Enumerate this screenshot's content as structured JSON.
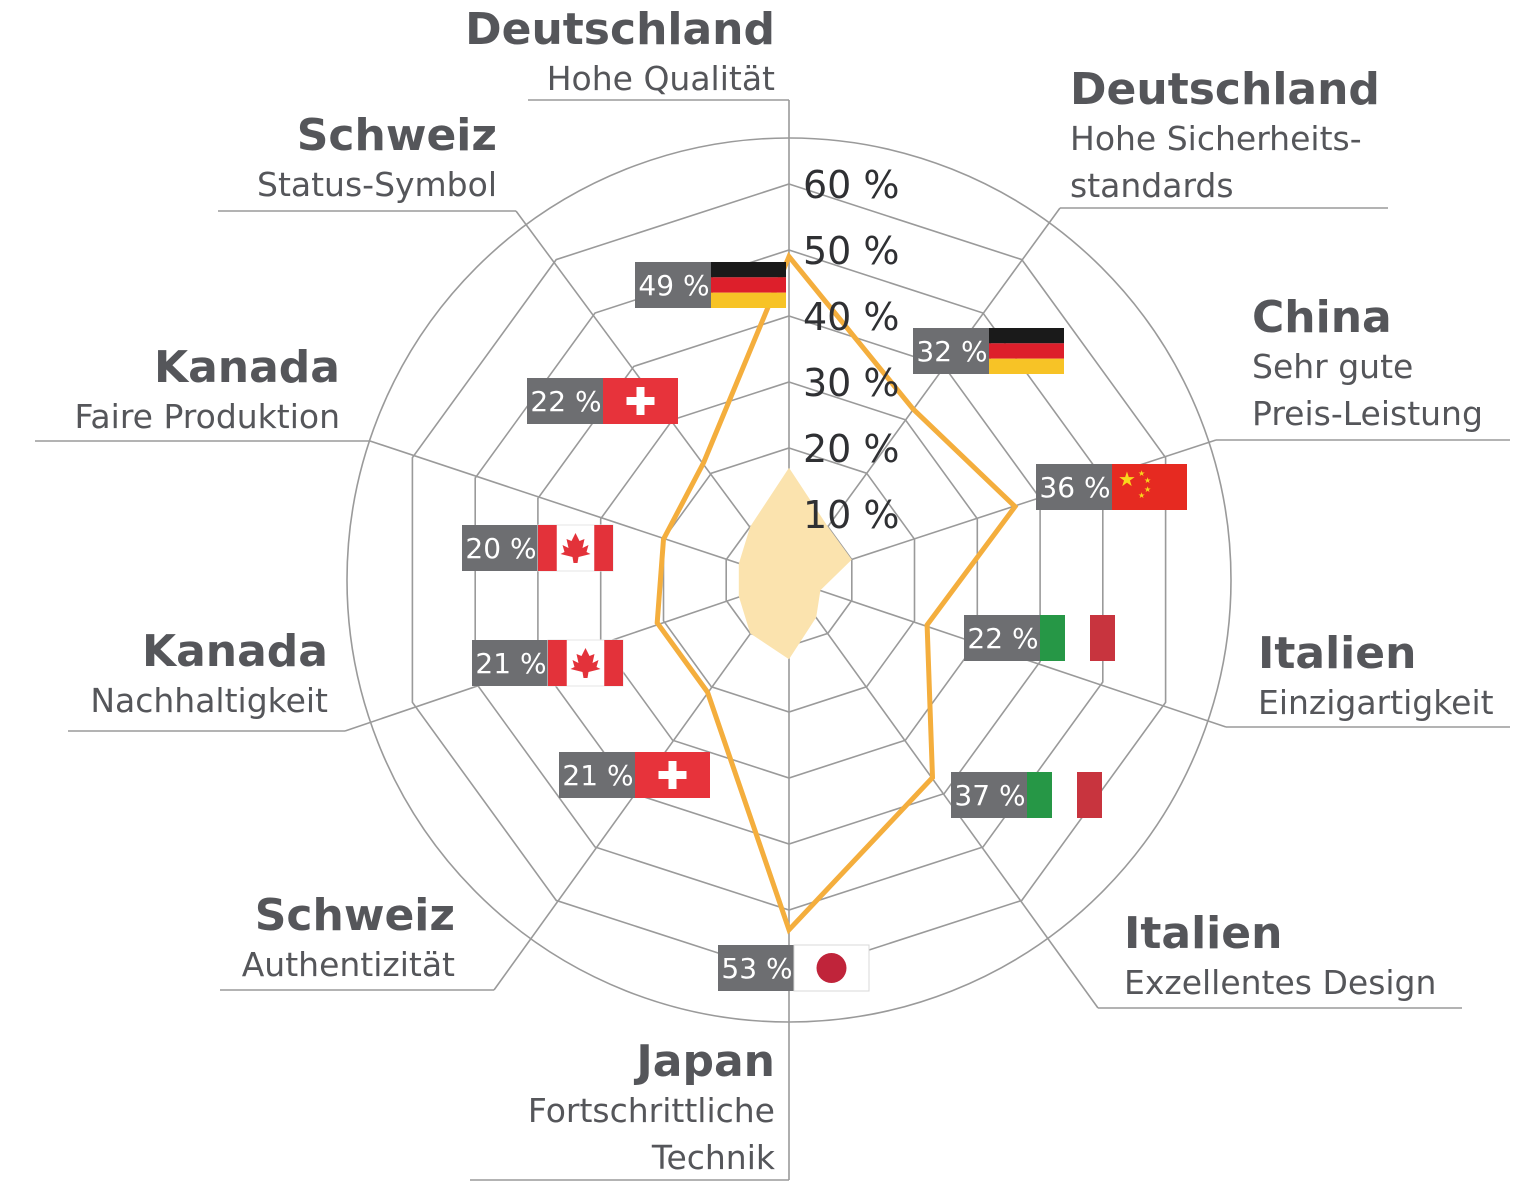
{
  "colors": {
    "grid": "#9a9a9a",
    "series_line": "#f4ae3d",
    "area_fill": "#fbe3ae",
    "badge_bg": "#6d6e71",
    "text": "#55565a"
  },
  "chart_data": {
    "type": "radar",
    "title": "",
    "r_ticks": [
      "10 %",
      "20 %",
      "30 %",
      "40 %",
      "50 %",
      "60 %"
    ],
    "r_tick_values": [
      10,
      20,
      30,
      40,
      50,
      60
    ],
    "rlim": [
      0,
      60
    ],
    "categories": [
      {
        "country": "Deutschland",
        "attribute": "Hohe Qualität",
        "value": 49,
        "value_label": "49 %",
        "flag": "germany-flag"
      },
      {
        "country": "Deutschland",
        "attribute": "Hohe Sicherheits- standards",
        "value": 32,
        "value_label": "32 %",
        "flag": "germany-flag"
      },
      {
        "country": "China",
        "attribute": "Sehr gute Preis-Leistung",
        "value": 36,
        "value_label": "36 %",
        "flag": "china-flag"
      },
      {
        "country": "Italien",
        "attribute": "Einzigartigkeit",
        "value": 22,
        "value_label": "22 %",
        "flag": "italy-flag"
      },
      {
        "country": "Italien",
        "attribute": "Exzellentes Design",
        "value": 37,
        "value_label": "37 %",
        "flag": "italy-flag"
      },
      {
        "country": "Japan",
        "attribute": "Fortschrittliche Technik",
        "value": 53,
        "value_label": "53 %",
        "flag": "japan-flag"
      },
      {
        "country": "Schweiz",
        "attribute": "Authentizität",
        "value": 21,
        "value_label": "21 %",
        "flag": "switzerland-flag"
      },
      {
        "country": "Kanada",
        "attribute": "Nachhaltigkeit",
        "value": 21,
        "value_label": "21 %",
        "flag": "canada-flag"
      },
      {
        "country": "Kanada",
        "attribute": "Faire Produktion",
        "value": 20,
        "value_label": "20 %",
        "flag": "canada-flag"
      },
      {
        "country": "Schweiz",
        "attribute": "Status-Symbol",
        "value": 22,
        "value_label": "22 %",
        "flag": "switzerland-flag"
      }
    ],
    "background_area_values": [
      17,
      10,
      10,
      5,
      7,
      12,
      10,
      8,
      8,
      10
    ],
    "grid": true,
    "legend": "none"
  }
}
